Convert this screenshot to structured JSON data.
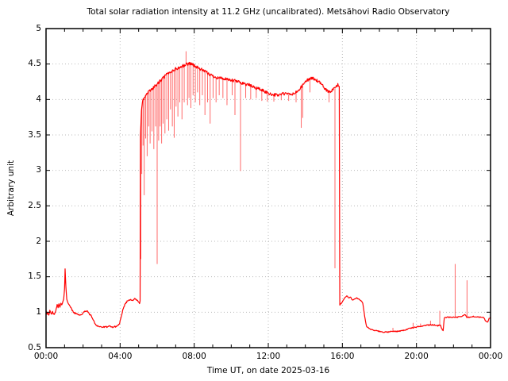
{
  "chart_data": {
    "type": "line",
    "title": "Total solar radiation intensity at 11.2 GHz (uncalibrated). Metsähovi Radio Observatory",
    "xlabel": "Time UT, on date 2025-03-16",
    "ylabel": "Arbitrary unit",
    "xlim": [
      0,
      24
    ],
    "ylim": [
      0.5,
      5
    ],
    "grid": "dotted, light gray, at major ticks",
    "legend": "none",
    "x_major_ticks": [
      {
        "pos": 0,
        "label": "00:00"
      },
      {
        "pos": 4,
        "label": "04:00"
      },
      {
        "pos": 8,
        "label": "08:00"
      },
      {
        "pos": 12,
        "label": "12:00"
      },
      {
        "pos": 16,
        "label": "16:00"
      },
      {
        "pos": 20,
        "label": "20:00"
      },
      {
        "pos": 24,
        "label": "00:00"
      }
    ],
    "x_minor_step": 1,
    "y_major_ticks": [
      {
        "pos": 0.5,
        "label": "0.5"
      },
      {
        "pos": 1,
        "label": "1"
      },
      {
        "pos": 1.5,
        "label": "1.5"
      },
      {
        "pos": 2,
        "label": "2"
      },
      {
        "pos": 2.5,
        "label": "2.5"
      },
      {
        "pos": 3,
        "label": "3"
      },
      {
        "pos": 3.5,
        "label": "3.5"
      },
      {
        "pos": 4,
        "label": "4"
      },
      {
        "pos": 4.5,
        "label": "4.5"
      },
      {
        "pos": 5,
        "label": "5"
      }
    ],
    "colors": {
      "line": "#ff0000",
      "spike": "#ff6a6a",
      "grid": "#b9b9b9",
      "axis": "#000000",
      "background": "#ffffff"
    },
    "noise_bands": [
      {
        "range": [
          0,
          5.05
        ],
        "amp": 0.01
      },
      {
        "range": [
          5.1,
          15.83
        ],
        "amp": 0.022
      },
      {
        "range": [
          15.9,
          24
        ],
        "amp": 0.007
      }
    ],
    "series": [
      [
        0.0,
        1.03
      ],
      [
        0.05,
        0.97
      ],
      [
        0.1,
        1.0
      ],
      [
        0.15,
        0.96
      ],
      [
        0.2,
        1.02
      ],
      [
        0.25,
        0.99
      ],
      [
        0.3,
        0.97
      ],
      [
        0.35,
        1.01
      ],
      [
        0.4,
        0.98
      ],
      [
        0.45,
        0.96
      ],
      [
        0.5,
        1.0
      ],
      [
        0.55,
        1.05
      ],
      [
        0.6,
        1.1
      ],
      [
        0.65,
        1.07
      ],
      [
        0.7,
        1.12
      ],
      [
        0.75,
        1.08
      ],
      [
        0.8,
        1.12
      ],
      [
        0.85,
        1.1
      ],
      [
        0.9,
        1.14
      ],
      [
        0.95,
        1.18
      ],
      [
        1.0,
        1.32
      ],
      [
        1.03,
        1.62
      ],
      [
        1.07,
        1.36
      ],
      [
        1.12,
        1.18
      ],
      [
        1.18,
        1.13
      ],
      [
        1.28,
        1.1
      ],
      [
        1.38,
        1.04
      ],
      [
        1.48,
        1.0
      ],
      [
        1.6,
        0.98
      ],
      [
        1.75,
        0.97
      ],
      [
        1.9,
        0.96
      ],
      [
        2.0,
        0.99
      ],
      [
        2.1,
        1.01
      ],
      [
        2.2,
        1.02
      ],
      [
        2.3,
        0.99
      ],
      [
        2.4,
        0.96
      ],
      [
        2.5,
        0.92
      ],
      [
        2.6,
        0.86
      ],
      [
        2.7,
        0.82
      ],
      [
        2.85,
        0.8
      ],
      [
        3.0,
        0.79
      ],
      [
        3.2,
        0.79
      ],
      [
        3.4,
        0.8
      ],
      [
        3.6,
        0.79
      ],
      [
        3.8,
        0.8
      ],
      [
        3.95,
        0.83
      ],
      [
        4.05,
        0.92
      ],
      [
        4.15,
        1.03
      ],
      [
        4.25,
        1.11
      ],
      [
        4.4,
        1.16
      ],
      [
        4.55,
        1.18
      ],
      [
        4.7,
        1.17
      ],
      [
        4.8,
        1.19
      ],
      [
        4.9,
        1.17
      ],
      [
        5.0,
        1.14
      ],
      [
        5.05,
        1.12
      ],
      [
        5.08,
        1.16
      ],
      [
        5.1,
        3.5
      ],
      [
        5.15,
        3.85
      ],
      [
        5.22,
        3.98
      ],
      [
        5.3,
        4.02
      ],
      [
        5.45,
        4.08
      ],
      [
        5.6,
        4.12
      ],
      [
        5.75,
        4.16
      ],
      [
        5.9,
        4.19
      ],
      [
        6.05,
        4.23
      ],
      [
        6.2,
        4.27
      ],
      [
        6.35,
        4.31
      ],
      [
        6.5,
        4.35
      ],
      [
        6.65,
        4.38
      ],
      [
        6.8,
        4.4
      ],
      [
        7.0,
        4.43
      ],
      [
        7.2,
        4.45
      ],
      [
        7.4,
        4.47
      ],
      [
        7.6,
        4.5
      ],
      [
        7.8,
        4.51
      ],
      [
        7.95,
        4.49
      ],
      [
        8.1,
        4.46
      ],
      [
        8.25,
        4.44
      ],
      [
        8.4,
        4.42
      ],
      [
        8.6,
        4.39
      ],
      [
        8.8,
        4.36
      ],
      [
        9.0,
        4.33
      ],
      [
        9.25,
        4.31
      ],
      [
        9.5,
        4.3
      ],
      [
        9.75,
        4.28
      ],
      [
        10.0,
        4.27
      ],
      [
        10.25,
        4.26
      ],
      [
        10.5,
        4.24
      ],
      [
        10.75,
        4.22
      ],
      [
        11.0,
        4.2
      ],
      [
        11.25,
        4.17
      ],
      [
        11.5,
        4.15
      ],
      [
        11.75,
        4.12
      ],
      [
        12.0,
        4.09
      ],
      [
        12.25,
        4.07
      ],
      [
        12.5,
        4.06
      ],
      [
        12.75,
        4.08
      ],
      [
        13.0,
        4.08
      ],
      [
        13.25,
        4.07
      ],
      [
        13.45,
        4.09
      ],
      [
        13.6,
        4.12
      ],
      [
        13.8,
        4.18
      ],
      [
        14.0,
        4.25
      ],
      [
        14.2,
        4.29
      ],
      [
        14.4,
        4.3
      ],
      [
        14.6,
        4.27
      ],
      [
        14.8,
        4.23
      ],
      [
        15.0,
        4.17
      ],
      [
        15.2,
        4.12
      ],
      [
        15.35,
        4.1
      ],
      [
        15.5,
        4.14
      ],
      [
        15.65,
        4.18
      ],
      [
        15.78,
        4.21
      ],
      [
        15.83,
        4.18
      ],
      [
        15.86,
        1.1
      ],
      [
        15.95,
        1.13
      ],
      [
        16.05,
        1.17
      ],
      [
        16.15,
        1.21
      ],
      [
        16.25,
        1.23
      ],
      [
        16.35,
        1.2
      ],
      [
        16.45,
        1.21
      ],
      [
        16.55,
        1.17
      ],
      [
        16.65,
        1.19
      ],
      [
        16.78,
        1.2
      ],
      [
        16.9,
        1.18
      ],
      [
        17.0,
        1.16
      ],
      [
        17.1,
        1.13
      ],
      [
        17.2,
        0.95
      ],
      [
        17.3,
        0.8
      ],
      [
        17.45,
        0.77
      ],
      [
        17.6,
        0.75
      ],
      [
        17.8,
        0.74
      ],
      [
        18.0,
        0.73
      ],
      [
        18.2,
        0.72
      ],
      [
        18.45,
        0.72
      ],
      [
        18.7,
        0.73
      ],
      [
        18.95,
        0.73
      ],
      [
        19.2,
        0.74
      ],
      [
        19.4,
        0.75
      ],
      [
        19.6,
        0.77
      ],
      [
        19.8,
        0.78
      ],
      [
        20.0,
        0.79
      ],
      [
        20.2,
        0.8
      ],
      [
        20.4,
        0.81
      ],
      [
        20.6,
        0.82
      ],
      [
        20.8,
        0.82
      ],
      [
        21.0,
        0.82
      ],
      [
        21.15,
        0.81
      ],
      [
        21.3,
        0.82
      ],
      [
        21.38,
        0.76
      ],
      [
        21.44,
        0.74
      ],
      [
        21.5,
        0.92
      ],
      [
        21.65,
        0.93
      ],
      [
        21.85,
        0.93
      ],
      [
        22.05,
        0.93
      ],
      [
        22.25,
        0.93
      ],
      [
        22.45,
        0.94
      ],
      [
        22.6,
        0.97
      ],
      [
        22.72,
        0.93
      ],
      [
        22.9,
        0.93
      ],
      [
        23.1,
        0.94
      ],
      [
        23.3,
        0.93
      ],
      [
        23.5,
        0.93
      ],
      [
        23.65,
        0.92
      ],
      [
        23.75,
        0.87
      ],
      [
        23.85,
        0.86
      ],
      [
        23.92,
        0.91
      ],
      [
        24.0,
        0.93
      ]
    ],
    "spikes": [
      [
        5.12,
        1.75
      ],
      [
        5.17,
        2.95
      ],
      [
        5.24,
        3.35
      ],
      [
        5.3,
        2.65
      ],
      [
        5.38,
        3.45
      ],
      [
        5.46,
        3.2
      ],
      [
        5.54,
        3.62
      ],
      [
        5.62,
        3.38
      ],
      [
        5.72,
        3.55
      ],
      [
        5.82,
        3.3
      ],
      [
        5.92,
        3.62
      ],
      [
        6.0,
        1.68
      ],
      [
        6.08,
        3.42
      ],
      [
        6.16,
        3.62
      ],
      [
        6.24,
        3.38
      ],
      [
        6.32,
        3.66
      ],
      [
        6.42,
        3.52
      ],
      [
        6.52,
        3.72
      ],
      [
        6.62,
        3.56
      ],
      [
        6.72,
        3.86
      ],
      [
        6.82,
        3.62
      ],
      [
        6.92,
        3.46
      ],
      [
        7.02,
        3.9
      ],
      [
        7.12,
        3.76
      ],
      [
        7.22,
        3.96
      ],
      [
        7.34,
        3.72
      ],
      [
        7.46,
        3.96
      ],
      [
        7.56,
        4.68
      ],
      [
        7.64,
        3.92
      ],
      [
        7.72,
        4.02
      ],
      [
        7.82,
        3.88
      ],
      [
        7.94,
        4.06
      ],
      [
        8.06,
        3.96
      ],
      [
        8.18,
        4.1
      ],
      [
        8.3,
        3.92
      ],
      [
        8.44,
        4.06
      ],
      [
        8.58,
        3.78
      ],
      [
        8.72,
        3.96
      ],
      [
        8.86,
        3.66
      ],
      [
        9.02,
        4.02
      ],
      [
        9.18,
        3.96
      ],
      [
        9.35,
        4.06
      ],
      [
        9.55,
        4.02
      ],
      [
        9.77,
        3.92
      ],
      [
        10.05,
        4.06
      ],
      [
        10.2,
        3.78
      ],
      [
        10.5,
        2.99
      ],
      [
        10.78,
        4.02
      ],
      [
        11.05,
        4.0
      ],
      [
        11.35,
        4.02
      ],
      [
        11.65,
        3.98
      ],
      [
        11.95,
        3.97
      ],
      [
        12.3,
        3.97
      ],
      [
        12.7,
        3.99
      ],
      [
        13.1,
        3.98
      ],
      [
        13.5,
        3.96
      ],
      [
        13.78,
        3.6
      ],
      [
        13.86,
        3.74
      ],
      [
        14.25,
        4.1
      ],
      [
        15.28,
        3.96
      ],
      [
        15.6,
        1.62
      ],
      [
        18.73,
        0.78
      ],
      [
        19.82,
        0.85
      ],
      [
        20.22,
        0.84
      ],
      [
        20.76,
        0.88
      ],
      [
        21.26,
        1.02
      ],
      [
        22.09,
        1.68
      ],
      [
        22.73,
        1.45
      ]
    ]
  }
}
